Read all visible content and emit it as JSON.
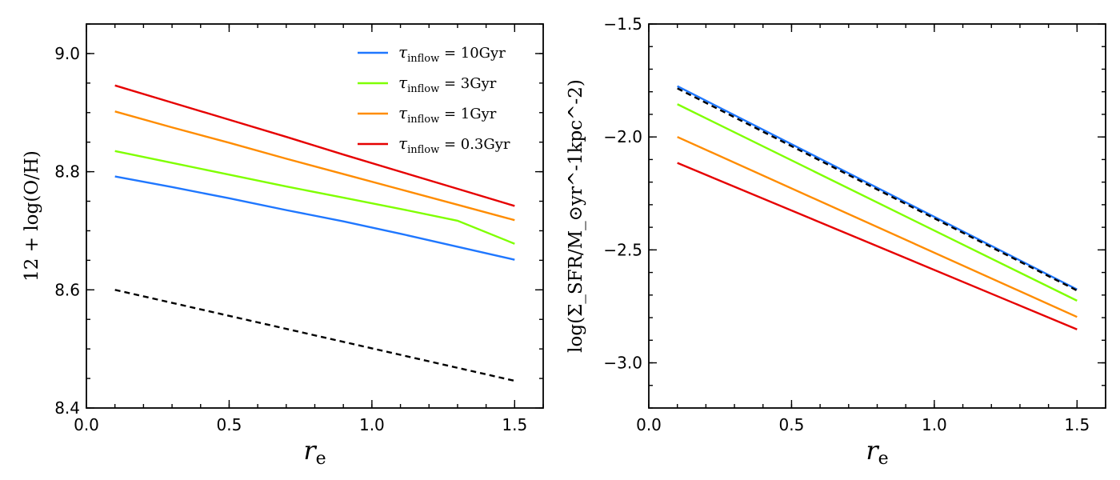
{
  "chart_data": [
    {
      "type": "line",
      "title": "",
      "xlabel": "r_e",
      "xlabel_main": "r",
      "xlabel_sub": "e",
      "ylabel": "12 + log(O/H)",
      "xlim": [
        0.0,
        1.6
      ],
      "ylim": [
        8.4,
        9.05
      ],
      "xticks": [
        0.0,
        0.5,
        1.0,
        1.5
      ],
      "xtick_labels": [
        "0.0",
        "0.5",
        "1.0",
        "1.5"
      ],
      "yticks": [
        8.4,
        8.6,
        8.8,
        9.0
      ],
      "ytick_labels": [
        "8.4",
        "8.6",
        "8.8",
        "9.0"
      ],
      "legend_position": "top-right",
      "series": [
        {
          "name": "τ_inflow = 10Gyr",
          "legend_main": "τ",
          "legend_sub": "inflow",
          "legend_rest": " = 10Gyr",
          "color": "#1f77ff",
          "style": "solid",
          "in_legend": true,
          "x": [
            0.1,
            0.3,
            0.5,
            0.7,
            0.9,
            1.1,
            1.3,
            1.5
          ],
          "y": [
            8.792,
            8.774,
            8.755,
            8.735,
            8.716,
            8.695,
            8.673,
            8.651
          ]
        },
        {
          "name": "τ_inflow = 3Gyr",
          "legend_main": "τ",
          "legend_sub": "inflow",
          "legend_rest": " = 3Gyr",
          "color": "#7fff00",
          "style": "solid",
          "in_legend": true,
          "x": [
            0.1,
            0.3,
            0.5,
            0.7,
            0.9,
            1.1,
            1.3,
            1.5
          ],
          "y": [
            8.835,
            8.815,
            8.795,
            8.775,
            8.756,
            8.737,
            8.717,
            8.678
          ]
        },
        {
          "name": "τ_inflow = 1Gyr",
          "legend_main": "τ",
          "legend_sub": "inflow",
          "legend_rest": " = 1Gyr",
          "color": "#ff8c00",
          "style": "solid",
          "in_legend": true,
          "x": [
            0.1,
            0.3,
            0.5,
            0.7,
            0.9,
            1.1,
            1.3,
            1.5
          ],
          "y": [
            8.902,
            8.875,
            8.849,
            8.822,
            8.796,
            8.77,
            8.744,
            8.718
          ]
        },
        {
          "name": "τ_inflow = 0.3Gyr",
          "legend_main": "τ",
          "legend_sub": "inflow",
          "legend_rest": " = 0.3Gyr",
          "color": "#e60000",
          "style": "solid",
          "in_legend": true,
          "x": [
            0.1,
            0.3,
            0.5,
            0.7,
            0.9,
            1.1,
            1.3,
            1.5
          ],
          "y": [
            8.946,
            8.917,
            8.888,
            8.859,
            8.829,
            8.8,
            8.771,
            8.742
          ]
        },
        {
          "name": "reference",
          "color": "#000000",
          "style": "dashed",
          "in_legend": false,
          "x": [
            0.1,
            1.5
          ],
          "y": [
            8.6,
            8.446
          ]
        }
      ]
    },
    {
      "type": "line",
      "title": "",
      "xlabel": "r_e",
      "xlabel_main": "r",
      "xlabel_sub": "e",
      "ylabel": "log(Σ_SFR/M_⊙yr^-1kpc^-2)",
      "xlim": [
        0.0,
        1.6
      ],
      "ylim": [
        -3.2,
        -1.5
      ],
      "xticks": [
        0.0,
        0.5,
        1.0,
        1.5
      ],
      "xtick_labels": [
        "0.0",
        "0.5",
        "1.0",
        "1.5"
      ],
      "yticks": [
        -1.5,
        -2.0,
        -2.5,
        -3.0
      ],
      "ytick_labels": [
        "−1.5",
        "−2.0",
        "−2.5",
        "−3.0"
      ],
      "series": [
        {
          "name": "τ_inflow = 10Gyr",
          "color": "#1f77ff",
          "style": "solid",
          "x": [
            0.1,
            1.5
          ],
          "y": [
            -1.775,
            -2.675
          ]
        },
        {
          "name": "τ_inflow = 3Gyr",
          "color": "#7fff00",
          "style": "solid",
          "x": [
            0.1,
            1.5
          ],
          "y": [
            -1.855,
            -2.725
          ]
        },
        {
          "name": "τ_inflow = 1Gyr",
          "color": "#ff8c00",
          "style": "solid",
          "x": [
            0.1,
            1.5
          ],
          "y": [
            -2.0,
            -2.797
          ]
        },
        {
          "name": "τ_inflow = 0.3Gyr",
          "color": "#e60000",
          "style": "solid",
          "x": [
            0.1,
            1.5
          ],
          "y": [
            -2.115,
            -2.852
          ]
        },
        {
          "name": "reference",
          "color": "#000000",
          "style": "dashed",
          "x": [
            0.1,
            1.5
          ],
          "y": [
            -1.785,
            -2.68
          ]
        }
      ]
    }
  ]
}
